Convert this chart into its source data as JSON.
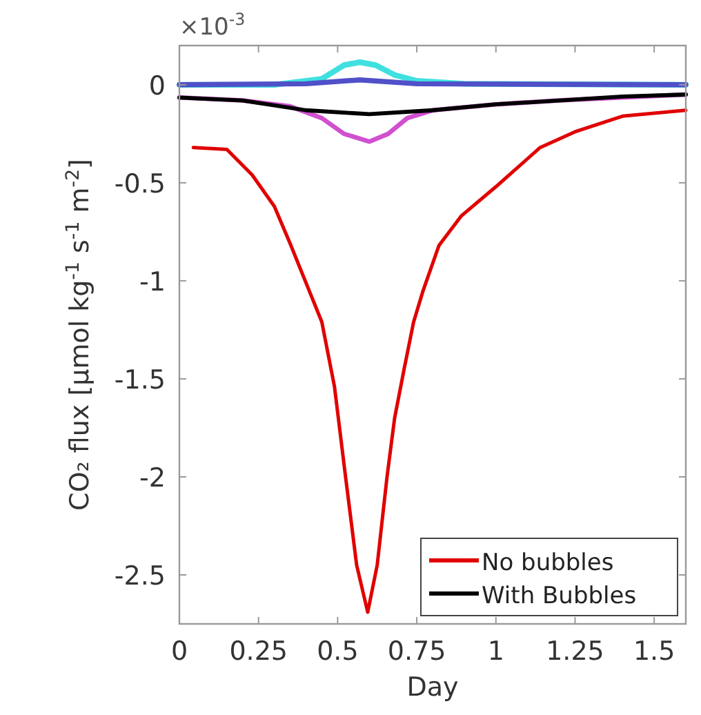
{
  "chart_data": {
    "type": "line",
    "xlabel": "Day",
    "ylabel": "CO₂ flux [μmol kg$^{-1}$ s$^{-1}$ m$^{-2}$]",
    "annotations": [
      "×10$^{-3}$"
    ],
    "xlim": [
      0,
      1.6
    ],
    "ylim": [
      -2.75,
      0.2
    ],
    "xticks": [
      0,
      0.25,
      0.5,
      0.75,
      1,
      1.25,
      1.5
    ],
    "yticks": [
      -2.5,
      -2,
      -1.5,
      -1,
      -0.5,
      0
    ],
    "grid": false,
    "legend": "bottom right",
    "line_style": "solid",
    "marker": "none",
    "series": [
      {
        "color": "#40e0e0",
        "x": [
          0,
          0.3,
          0.45,
          0.52,
          0.57,
          0.62,
          0.68,
          0.75,
          0.9,
          1.6
        ],
        "values": [
          0,
          0,
          0.03,
          0.1,
          0.115,
          0.1,
          0.05,
          0.02,
          0.005,
          0
        ]
      },
      {
        "color": "#5050c8",
        "x": [
          0,
          0.4,
          0.57,
          0.75,
          1.6
        ],
        "values": [
          0,
          0.005,
          0.025,
          0.005,
          0
        ]
      },
      {
        "color": "#d050d0",
        "x": [
          0,
          0.2,
          0.35,
          0.45,
          0.52,
          0.6,
          0.66,
          0.72,
          0.8,
          1,
          1.2,
          1.6
        ],
        "values": [
          -0.065,
          -0.08,
          -0.11,
          -0.17,
          -0.25,
          -0.29,
          -0.25,
          -0.17,
          -0.13,
          -0.1,
          -0.08,
          -0.05
        ]
      },
      {
        "name": "With Bubbles",
        "color": "#000000",
        "x": [
          0,
          0.2,
          0.4,
          0.6,
          0.8,
          1,
          1.2,
          1.4,
          1.6
        ],
        "values": [
          -0.065,
          -0.08,
          -0.13,
          -0.15,
          -0.13,
          -0.1,
          -0.08,
          -0.06,
          -0.05
        ]
      },
      {
        "name": "No bubbles",
        "color": "#e00000",
        "x": [
          0.044,
          0.15,
          0.23,
          0.3,
          0.35,
          0.41,
          0.45,
          0.49,
          0.525,
          0.56,
          0.595,
          0.625,
          0.656,
          0.68,
          0.71,
          0.74,
          0.77,
          0.82,
          0.89,
          1,
          1.14,
          1.25,
          1.4,
          1.6
        ],
        "values": [
          -0.32,
          -0.33,
          -0.46,
          -0.62,
          -0.81,
          -1.05,
          -1.21,
          -1.54,
          -2,
          -2.45,
          -2.69,
          -2.45,
          -2,
          -1.7,
          -1.45,
          -1.21,
          -1.05,
          -0.82,
          -0.67,
          -0.52,
          -0.32,
          -0.24,
          -0.16,
          -0.13
        ]
      }
    ]
  }
}
